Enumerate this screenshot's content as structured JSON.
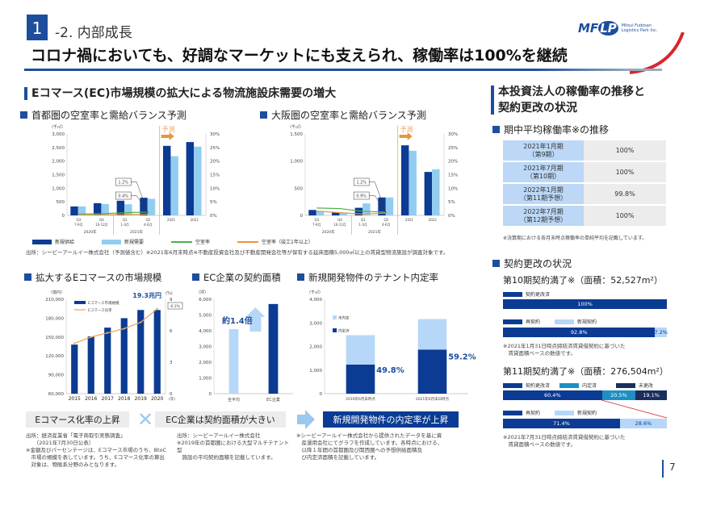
{
  "header": {
    "section_number": "1",
    "subtitle": "-2. 内部成長",
    "title": "コロナ禍においても、好調なマーケットにも支えられ、稼働率は100%を継続",
    "logo_text": "MFLP",
    "logo_company": "Mitsui Fudosan Logistics Park Inc.",
    "page_number": "7"
  },
  "left": {
    "section_title": "Eコマース(EC)市場規模の拡大による物流施設床需要の増大",
    "legend": [
      "新規供給",
      "新規需要",
      "空室率",
      "空室率（竣工1年以上）"
    ],
    "footnote": "出所：シービーアールイー株式会社（予測値含む）※2021年6月末時点※不動産投資会社及び不動産開発会社等が保有する延床面積5,000㎡以上の賃貸型物流施設が調査対象です。",
    "conclusions": [
      "Eコマース化率の上昇",
      "EC企業は契約面積が大きい",
      "新規開発物件の内定率が上昇"
    ],
    "notes": [
      "出所：経済産業省「電子商取引実態調査」\n　　（2021年7月30日公表）\n※金額及びパーセンテージは、Eコマース市場のうち、BtoC\n　市場の規模を表しています。うち、Eコマース化率の算出\n　対象は、物販系分野のみとなります。",
      "出所：シービーアールイー株式会社\n※2019年の首都圏における大型マルチテナント型\n　施設の平均契約面積を記載しています。",
      "※シービーアールイー株式会社から提供されたデータを基に資\n　産運用会社にてグラフを作成しています。各時点における、\n　以降１年間の首都圏及び関西圏への予想供給面積及\n　び内定済面積を記載しています。"
    ]
  },
  "chart_data": [
    {
      "type": "bar",
      "title": "首都圏の空室率と需給バランス予測",
      "unit": "（千㎡）",
      "categories": [
        "Q3\n7-9月",
        "Q4\n10-12月",
        "Q1\n1-3月",
        "Q2\n4-6月",
        "2021",
        "2022"
      ],
      "groups": [
        "2020年",
        "2021年"
      ],
      "forecast_label": "予測",
      "ylim": [
        0,
        3000
      ],
      "yticks": [
        "0",
        "500",
        "1,000",
        "1,500",
        "2,000",
        "2,500",
        "3,000"
      ],
      "y2lim": [
        0,
        30
      ],
      "y2ticks": [
        "0%",
        "5%",
        "10%",
        "15%",
        "20%",
        "25%",
        "30%"
      ],
      "series": [
        {
          "name": "新規供給",
          "values": [
            330,
            450,
            540,
            650,
            2560,
            2700
          ],
          "color": "#0b3b93"
        },
        {
          "name": "新規需要",
          "values": [
            330,
            420,
            410,
            610,
            2180,
            2530
          ],
          "color": "#92cdf1"
        }
      ],
      "lines": [
        {
          "name": "空室率",
          "values": [
            0.5,
            0.6,
            1.0,
            1.2
          ],
          "color": "#4caf50"
        },
        {
          "name": "空室率（竣工1年以上）",
          "values": [
            0.2,
            0.2,
            0.3,
            0.4
          ],
          "color": "#e8963f"
        }
      ],
      "callouts": [
        "1.2%",
        "0.4%"
      ]
    },
    {
      "type": "bar",
      "title": "大阪圏の空室率と需給バランス予測",
      "unit": "（千㎡）",
      "categories": [
        "Q3\n7-9月",
        "Q4\n10-12月",
        "Q1\n1-3月",
        "Q2\n4-6月",
        "2021",
        "2022"
      ],
      "groups": [
        "2020年",
        "2021年"
      ],
      "forecast_label": "予測",
      "ylim": [
        0,
        1500
      ],
      "yticks": [
        "0",
        "500",
        "1,000",
        "1,500"
      ],
      "y2lim": [
        0,
        30
      ],
      "y2ticks": [
        "0%",
        "5%",
        "10%",
        "15%",
        "20%",
        "25%",
        "30%"
      ],
      "series": [
        {
          "name": "新規供給",
          "values": [
            100,
            60,
            140,
            330,
            1290,
            800
          ],
          "color": "#0b3b93"
        },
        {
          "name": "新規需要",
          "values": [
            80,
            50,
            220,
            330,
            1190,
            850
          ],
          "color": "#92cdf1"
        }
      ],
      "lines": [
        {
          "name": "空室率",
          "values": [
            2.7,
            2.5,
            1.5,
            1.2
          ],
          "color": "#4caf50"
        },
        {
          "name": "空室率（竣工1年以上）",
          "values": [
            1.6,
            1.0,
            0.5,
            0.9
          ],
          "color": "#e8963f"
        }
      ],
      "callouts": [
        "1.2%",
        "0.9%"
      ]
    },
    {
      "type": "bar",
      "title": "拡大するEコマースの市場規模",
      "unit": "（億円）",
      "unit2": "(%)",
      "xunit": "(年)",
      "categories": [
        "2015",
        "2016",
        "2017",
        "2018",
        "2019",
        "2020"
      ],
      "ylim": [
        60000,
        210000
      ],
      "yticks": [
        "60,000",
        "90,000",
        "120,000",
        "150,000",
        "180,000",
        "210,000"
      ],
      "y2lim": [
        0,
        9
      ],
      "y2ticks": [
        "0",
        "3",
        "6",
        "9"
      ],
      "series": [
        {
          "name": "Eコマース市場規模",
          "values": [
            138000,
            151000,
            165000,
            180000,
            193000,
            193000
          ],
          "color": "#0b3b93"
        }
      ],
      "lines": [
        {
          "name": "Eコマース化率",
          "values": [
            4.8,
            5.4,
            5.8,
            6.2,
            6.8,
            8.1
          ],
          "color": "#f0a860"
        }
      ],
      "annotation": "19.3兆円",
      "callout": "8.1%"
    },
    {
      "type": "bar",
      "title": "EC企業の契約面積",
      "unit": "（坪）",
      "categories": [
        "全平均",
        "EC企業"
      ],
      "values": [
        4100,
        5700
      ],
      "colors": [
        "#b6d7f7",
        "#0b3b93"
      ],
      "ylim": [
        0,
        6000
      ],
      "yticks": [
        "0",
        "1,000",
        "2,000",
        "3,000",
        "4,000",
        "5,000",
        "6,000"
      ],
      "annotation": "約1.4倍"
    },
    {
      "type": "bar",
      "title": "新規開発物件のテナント内定率",
      "unit": "（千㎡）",
      "categories": [
        "2019年6月末時点",
        "2021年6月末日時点"
      ],
      "ylim": [
        0,
        4000
      ],
      "yticks": [
        "0",
        "1,000",
        "2,000",
        "3,000",
        "4,000"
      ],
      "series": [
        {
          "name": "内定済",
          "values": [
            1235,
            1870
          ],
          "color": "#0b3b93"
        },
        {
          "name": "未内定",
          "values": [
            1245,
            1290
          ],
          "color": "#b6d7f7"
        }
      ],
      "labels": [
        "49.8%",
        "59.2%"
      ]
    }
  ],
  "right": {
    "section_title_1": "本投資法人の稼働率の推移と",
    "section_title_2": "契約更改の状況",
    "occ_title": "期中平均稼働率※の推移",
    "occupancy": [
      {
        "period": "2021年1月期",
        "term": "（第9期）",
        "value": "100%"
      },
      {
        "period": "2021年7月期",
        "term": "（第10期）",
        "value": "100%"
      },
      {
        "period": "2022年1月期",
        "term": "（第11期予想）",
        "value": "99.8%"
      },
      {
        "period": "2022年7月期",
        "term": "（第12期予想）",
        "value": "100%"
      }
    ],
    "occ_note": "※決算期における各月末時点稼働率の単純平均を記載しています。",
    "renewal_title": "契約更改の状況",
    "t10": {
      "title": "第10期契約満了※（面積：52,527m²）",
      "legend1": [
        "契約更改済"
      ],
      "bar1": [
        "100%"
      ],
      "legend2": [
        "再契約",
        "新規契約"
      ],
      "bar2": [
        "92.8%",
        "7.2%"
      ],
      "note": "※2021年1月31日時点締結済賃貸借契約に基づいた\n　賃貸面積ベースの数値です。"
    },
    "t11": {
      "title": "第11期契約満了※（面積：276,504m²）",
      "legend1": [
        "契約更改済",
        "内定済",
        "未更改"
      ],
      "bar1": [
        "60.4%",
        "20.5%",
        "19.1%"
      ],
      "legend2": [
        "再契約",
        "新規契約"
      ],
      "bar2": [
        "71.4%",
        "28.6%"
      ],
      "note": "※2021年7月31日時点締結済賃貸借契約に基づいた\n　賃貸面積ベースの数値です。"
    },
    "colors": {
      "primary": "#0b3b93",
      "light": "#b6d7f7",
      "teal": "#1e8fc4",
      "navy": "#1b2f5e"
    }
  }
}
